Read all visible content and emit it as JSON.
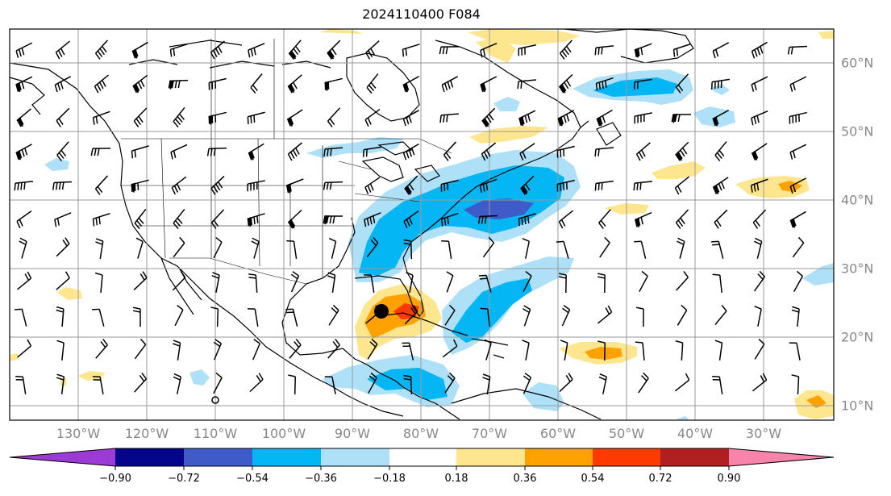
{
  "title": "2024110400 F084",
  "lon_labels": [
    "130°W",
    "120°W",
    "110°W",
    "100°W",
    "90°W",
    "80°W",
    "70°W",
    "60°W",
    "50°W",
    "40°W",
    "30°W"
  ],
  "lat_labels": [
    "60°N",
    "50°N",
    "40°N",
    "30°N",
    "20°N",
    "10°N"
  ],
  "colorbar": {
    "ticks": [
      "−0.90",
      "−0.72",
      "−0.54",
      "−0.36",
      "−0.18",
      "0.18",
      "0.36",
      "0.54",
      "0.72",
      "0.90"
    ],
    "colors": [
      "#9c3ad6",
      "#05058c",
      "#3f5bc8",
      "#05b6f5",
      "#aee0f7",
      "#ffffff",
      "#fde68d",
      "#ffa100",
      "#ff3a00",
      "#b11f20",
      "#f984ab"
    ]
  },
  "map": {
    "lon_range": [
      -140,
      -20
    ],
    "lat_range": [
      8,
      65
    ],
    "projection": "plate-carree",
    "grid": true,
    "storm_marker": {
      "lon": -85.6,
      "lat": 23.8
    },
    "contours_shown": [
      "positive anomaly (yellow/orange/red)",
      "negative anomaly (blue shades)"
    ]
  }
}
